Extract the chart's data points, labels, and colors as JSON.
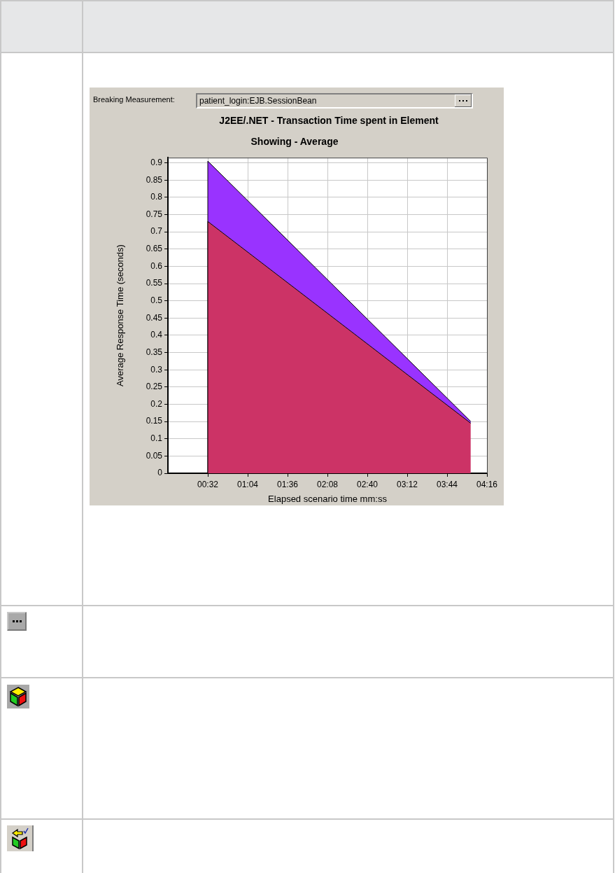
{
  "chart_data": {
    "type": "area",
    "title": "J2EE/.NET - Transaction Time spent in Element",
    "subtitle": "Showing - Average",
    "xlabel": "Elapsed scenario time mm:ss",
    "ylabel": "Average Response Time (seconds)",
    "annotations": [
      "Breaking Measurement:",
      "patient_login:EJB.SessionBean"
    ],
    "x": [
      0,
      32,
      32,
      243
    ],
    "stacked": true,
    "series": [
      {
        "color": "#cc3366",
        "values": [
          0,
          0,
          0.73,
          0.145
        ]
      },
      {
        "color": "#9933ff",
        "values": [
          0,
          0,
          0.175,
          0.005
        ]
      }
    ],
    "xlim": [
      0,
      256
    ],
    "xticks": [
      {
        "value": 32,
        "label": "00:32"
      },
      {
        "value": 64,
        "label": "01:04"
      },
      {
        "value": 96,
        "label": "01:36"
      },
      {
        "value": 128,
        "label": "02:08"
      },
      {
        "value": 160,
        "label": "02:40"
      },
      {
        "value": 192,
        "label": "03:12"
      },
      {
        "value": 224,
        "label": "03:44"
      },
      {
        "value": 256,
        "label": "04:16"
      }
    ],
    "ylim": [
      0,
      0.915
    ],
    "yticks": [
      0,
      0.05,
      0.1,
      0.15,
      0.2,
      0.25,
      0.3,
      0.35,
      0.4,
      0.45,
      0.5,
      0.55,
      0.6,
      0.65,
      0.7,
      0.75,
      0.8,
      0.85,
      0.9
    ],
    "grid": true
  }
}
